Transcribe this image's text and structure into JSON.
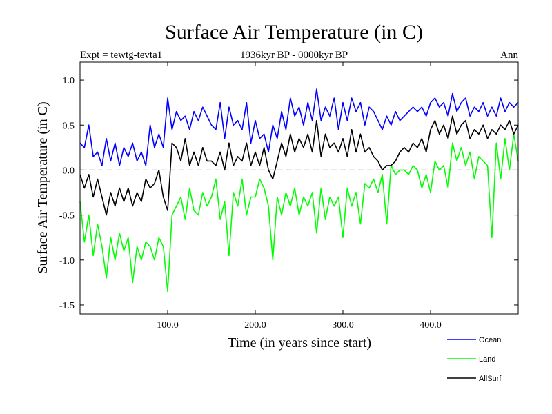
{
  "chart_data": {
    "type": "line",
    "title": "Surface Air Temperature (in C)",
    "subtitle": "1936kyr BP - 0000kyr BP",
    "header_left": "Expt = tewtg-tevta1",
    "header_right": "Ann",
    "xlabel": "Time (in years since start)",
    "ylabel": "Surface Air Temperature (in C)",
    "xlim": [
      0,
      500
    ],
    "ylim": [
      -1.6,
      1.2
    ],
    "x_ticks": [
      100,
      200,
      300,
      400
    ],
    "x_tick_labels": [
      "100.0",
      "200.0",
      "300.0",
      "400.0"
    ],
    "y_ticks": [
      1.0,
      0.5,
      0.0,
      -0.5,
      -1.0,
      -1.5
    ],
    "y_tick_labels": [
      "1.0",
      "0.5",
      "0.0",
      "-0.5",
      "-1.0",
      "-1.5"
    ],
    "reference_line": 0.0,
    "legend_position": "bottom-right outside",
    "x": [
      0,
      5,
      10,
      15,
      20,
      25,
      30,
      35,
      40,
      45,
      50,
      55,
      60,
      65,
      70,
      75,
      80,
      85,
      90,
      95,
      100,
      105,
      110,
      115,
      120,
      125,
      130,
      135,
      140,
      145,
      150,
      155,
      160,
      165,
      170,
      175,
      180,
      185,
      190,
      195,
      200,
      205,
      210,
      215,
      220,
      225,
      230,
      235,
      240,
      245,
      250,
      255,
      260,
      265,
      270,
      275,
      280,
      285,
      290,
      295,
      300,
      305,
      310,
      315,
      320,
      325,
      330,
      335,
      340,
      345,
      350,
      355,
      360,
      365,
      370,
      375,
      380,
      385,
      390,
      395,
      400,
      405,
      410,
      415,
      420,
      425,
      430,
      435,
      440,
      445,
      450,
      455,
      460,
      465,
      470,
      475,
      480,
      485,
      490,
      495,
      500
    ],
    "series": [
      {
        "name": "Ocean",
        "color": "#0000ff",
        "values": [
          0.3,
          0.25,
          0.5,
          0.15,
          0.2,
          0.05,
          0.35,
          0.1,
          0.3,
          0.05,
          0.25,
          0.15,
          0.3,
          0.1,
          0.2,
          0.05,
          0.5,
          0.25,
          0.4,
          0.25,
          0.8,
          0.45,
          0.65,
          0.55,
          0.6,
          0.45,
          0.65,
          0.55,
          0.7,
          0.6,
          0.5,
          0.45,
          0.75,
          0.35,
          0.7,
          0.5,
          0.55,
          0.45,
          0.75,
          0.3,
          0.55,
          0.35,
          0.4,
          0.2,
          0.5,
          0.35,
          0.65,
          0.45,
          0.8,
          0.6,
          0.7,
          0.5,
          0.75,
          0.55,
          0.9,
          0.55,
          0.7,
          0.6,
          0.8,
          0.45,
          0.75,
          0.55,
          0.8,
          0.65,
          0.75,
          0.5,
          0.7,
          0.65,
          0.55,
          0.45,
          0.6,
          0.5,
          0.65,
          0.55,
          0.6,
          0.65,
          0.7,
          0.65,
          0.7,
          0.6,
          0.75,
          0.8,
          0.7,
          0.75,
          0.6,
          0.85,
          0.65,
          0.75,
          0.8,
          0.6,
          0.7,
          0.65,
          0.75,
          0.6,
          0.7,
          0.6,
          0.8,
          0.65,
          0.75,
          0.7,
          0.75
        ]
      },
      {
        "name": "Land",
        "color": "#00ff00",
        "values": [
          -0.35,
          -0.8,
          -0.5,
          -0.95,
          -0.6,
          -0.85,
          -1.2,
          -0.75,
          -1.0,
          -0.7,
          -0.9,
          -0.75,
          -1.25,
          -0.85,
          -1.0,
          -0.8,
          -0.85,
          -1.0,
          -0.75,
          -0.85,
          -1.35,
          -0.5,
          -0.4,
          -0.3,
          -0.55,
          -0.2,
          -0.45,
          -0.5,
          -0.25,
          -0.4,
          -0.3,
          -0.1,
          -0.55,
          -0.35,
          -0.95,
          -0.25,
          -0.4,
          -0.1,
          -0.5,
          -0.3,
          -0.3,
          -0.1,
          -0.2,
          -0.4,
          -1.0,
          -0.3,
          -0.5,
          -0.25,
          -0.4,
          -0.2,
          -0.5,
          -0.3,
          -0.4,
          -0.25,
          -0.7,
          -0.2,
          -0.55,
          -0.3,
          -0.4,
          -0.3,
          -0.75,
          -0.2,
          -0.4,
          -0.25,
          -0.6,
          -0.15,
          -0.2,
          -0.1,
          -0.25,
          -0.05,
          -0.6,
          0.05,
          -0.05,
          0.0,
          0.0,
          -0.05,
          0.05,
          0.0,
          -0.2,
          -0.05,
          -0.25,
          0.1,
          0.0,
          0.05,
          -0.2,
          0.3,
          0.1,
          0.25,
          0.05,
          0.2,
          -0.1,
          0.15,
          0.1,
          0.05,
          -0.75,
          0.3,
          -0.1,
          0.35,
          0.0,
          0.4,
          0.1
        ]
      },
      {
        "name": "AllSurf",
        "color": "#000000",
        "values": [
          -0.05,
          -0.2,
          -0.05,
          -0.3,
          -0.1,
          -0.3,
          -0.5,
          -0.25,
          -0.4,
          -0.2,
          -0.35,
          -0.2,
          -0.4,
          -0.25,
          -0.35,
          -0.1,
          -0.2,
          -0.15,
          0.0,
          -0.3,
          -0.45,
          0.3,
          0.25,
          0.1,
          0.35,
          0.05,
          0.2,
          0.05,
          0.25,
          0.1,
          0.1,
          0.05,
          0.2,
          0.0,
          0.3,
          0.05,
          0.15,
          0.1,
          0.3,
          0.05,
          0.2,
          0.05,
          0.25,
          0.0,
          -0.1,
          0.1,
          0.3,
          0.15,
          0.4,
          0.2,
          0.35,
          0.25,
          0.4,
          0.2,
          0.55,
          0.15,
          0.4,
          0.25,
          0.3,
          0.2,
          0.35,
          0.15,
          0.45,
          0.2,
          0.4,
          0.2,
          0.25,
          0.15,
          0.1,
          0.0,
          0.05,
          0.05,
          0.1,
          0.2,
          0.25,
          0.2,
          0.3,
          0.25,
          0.35,
          0.2,
          0.45,
          0.55,
          0.4,
          0.5,
          0.35,
          0.6,
          0.4,
          0.5,
          0.55,
          0.35,
          0.45,
          0.4,
          0.5,
          0.35,
          0.45,
          0.4,
          0.5,
          0.45,
          0.55,
          0.4,
          0.5
        ]
      }
    ]
  }
}
